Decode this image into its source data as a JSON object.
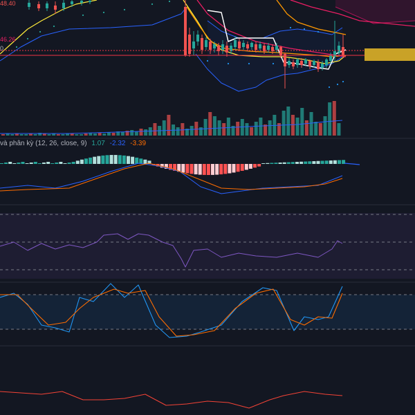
{
  "colors": {
    "background": "#131722",
    "up": "#26a69a",
    "down": "#ef5350",
    "macd_line": "#2962ff",
    "signal_line": "#ff6d00",
    "rsi_line": "#7e57c2",
    "stoch_k": "#2196f3",
    "stoch_d": "#ff6d00",
    "bottom_line": "#f44336",
    "price_line": "#f23645",
    "ma_white": "#ffffff",
    "ma_yellow": "#ffeb3b",
    "ma_orange": "#ff9800",
    "ma_red": "#e91e63",
    "bb_band": "#2962ff",
    "price_marker": "#c9a227"
  },
  "price_pane": {
    "labels": {
      "top_left": "48.40",
      "mid_left": "46.26",
      "mid_left_zero": "0"
    }
  },
  "macd_pane": {
    "title": "và phân kỳ (12, 26, close, 9)",
    "histogram_value": "1.07",
    "macd_value": "-2.32",
    "signal_value": "-3.39"
  }
}
